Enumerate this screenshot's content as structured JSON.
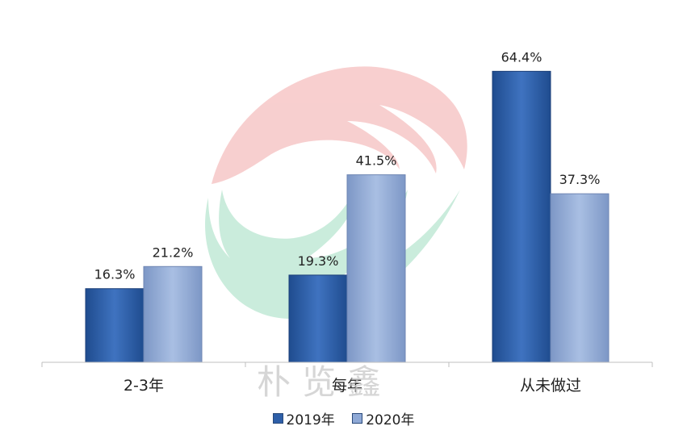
{
  "chart_data": {
    "type": "bar",
    "categories": [
      "2-3年",
      "每年",
      "从未做过"
    ],
    "series": [
      {
        "name": "2019年",
        "values": [
          16.3,
          19.3,
          64.4
        ],
        "color": "#2e5fa8"
      },
      {
        "name": "2020年",
        "values": [
          21.2,
          41.5,
          37.3
        ],
        "color": "#8fa9d6"
      }
    ],
    "data_labels": [
      [
        "16.3%",
        "19.3%",
        "64.4%"
      ],
      [
        "21.2%",
        "41.5%",
        "37.3%"
      ]
    ],
    "ylim": [
      0,
      72
    ],
    "grid": false,
    "legend_position": "bottom",
    "title": "",
    "xlabel": "",
    "ylabel": ""
  },
  "watermark": {
    "text": "朴览鑫",
    "colors": [
      "#f2a8a8",
      "#9fdcbf"
    ]
  }
}
